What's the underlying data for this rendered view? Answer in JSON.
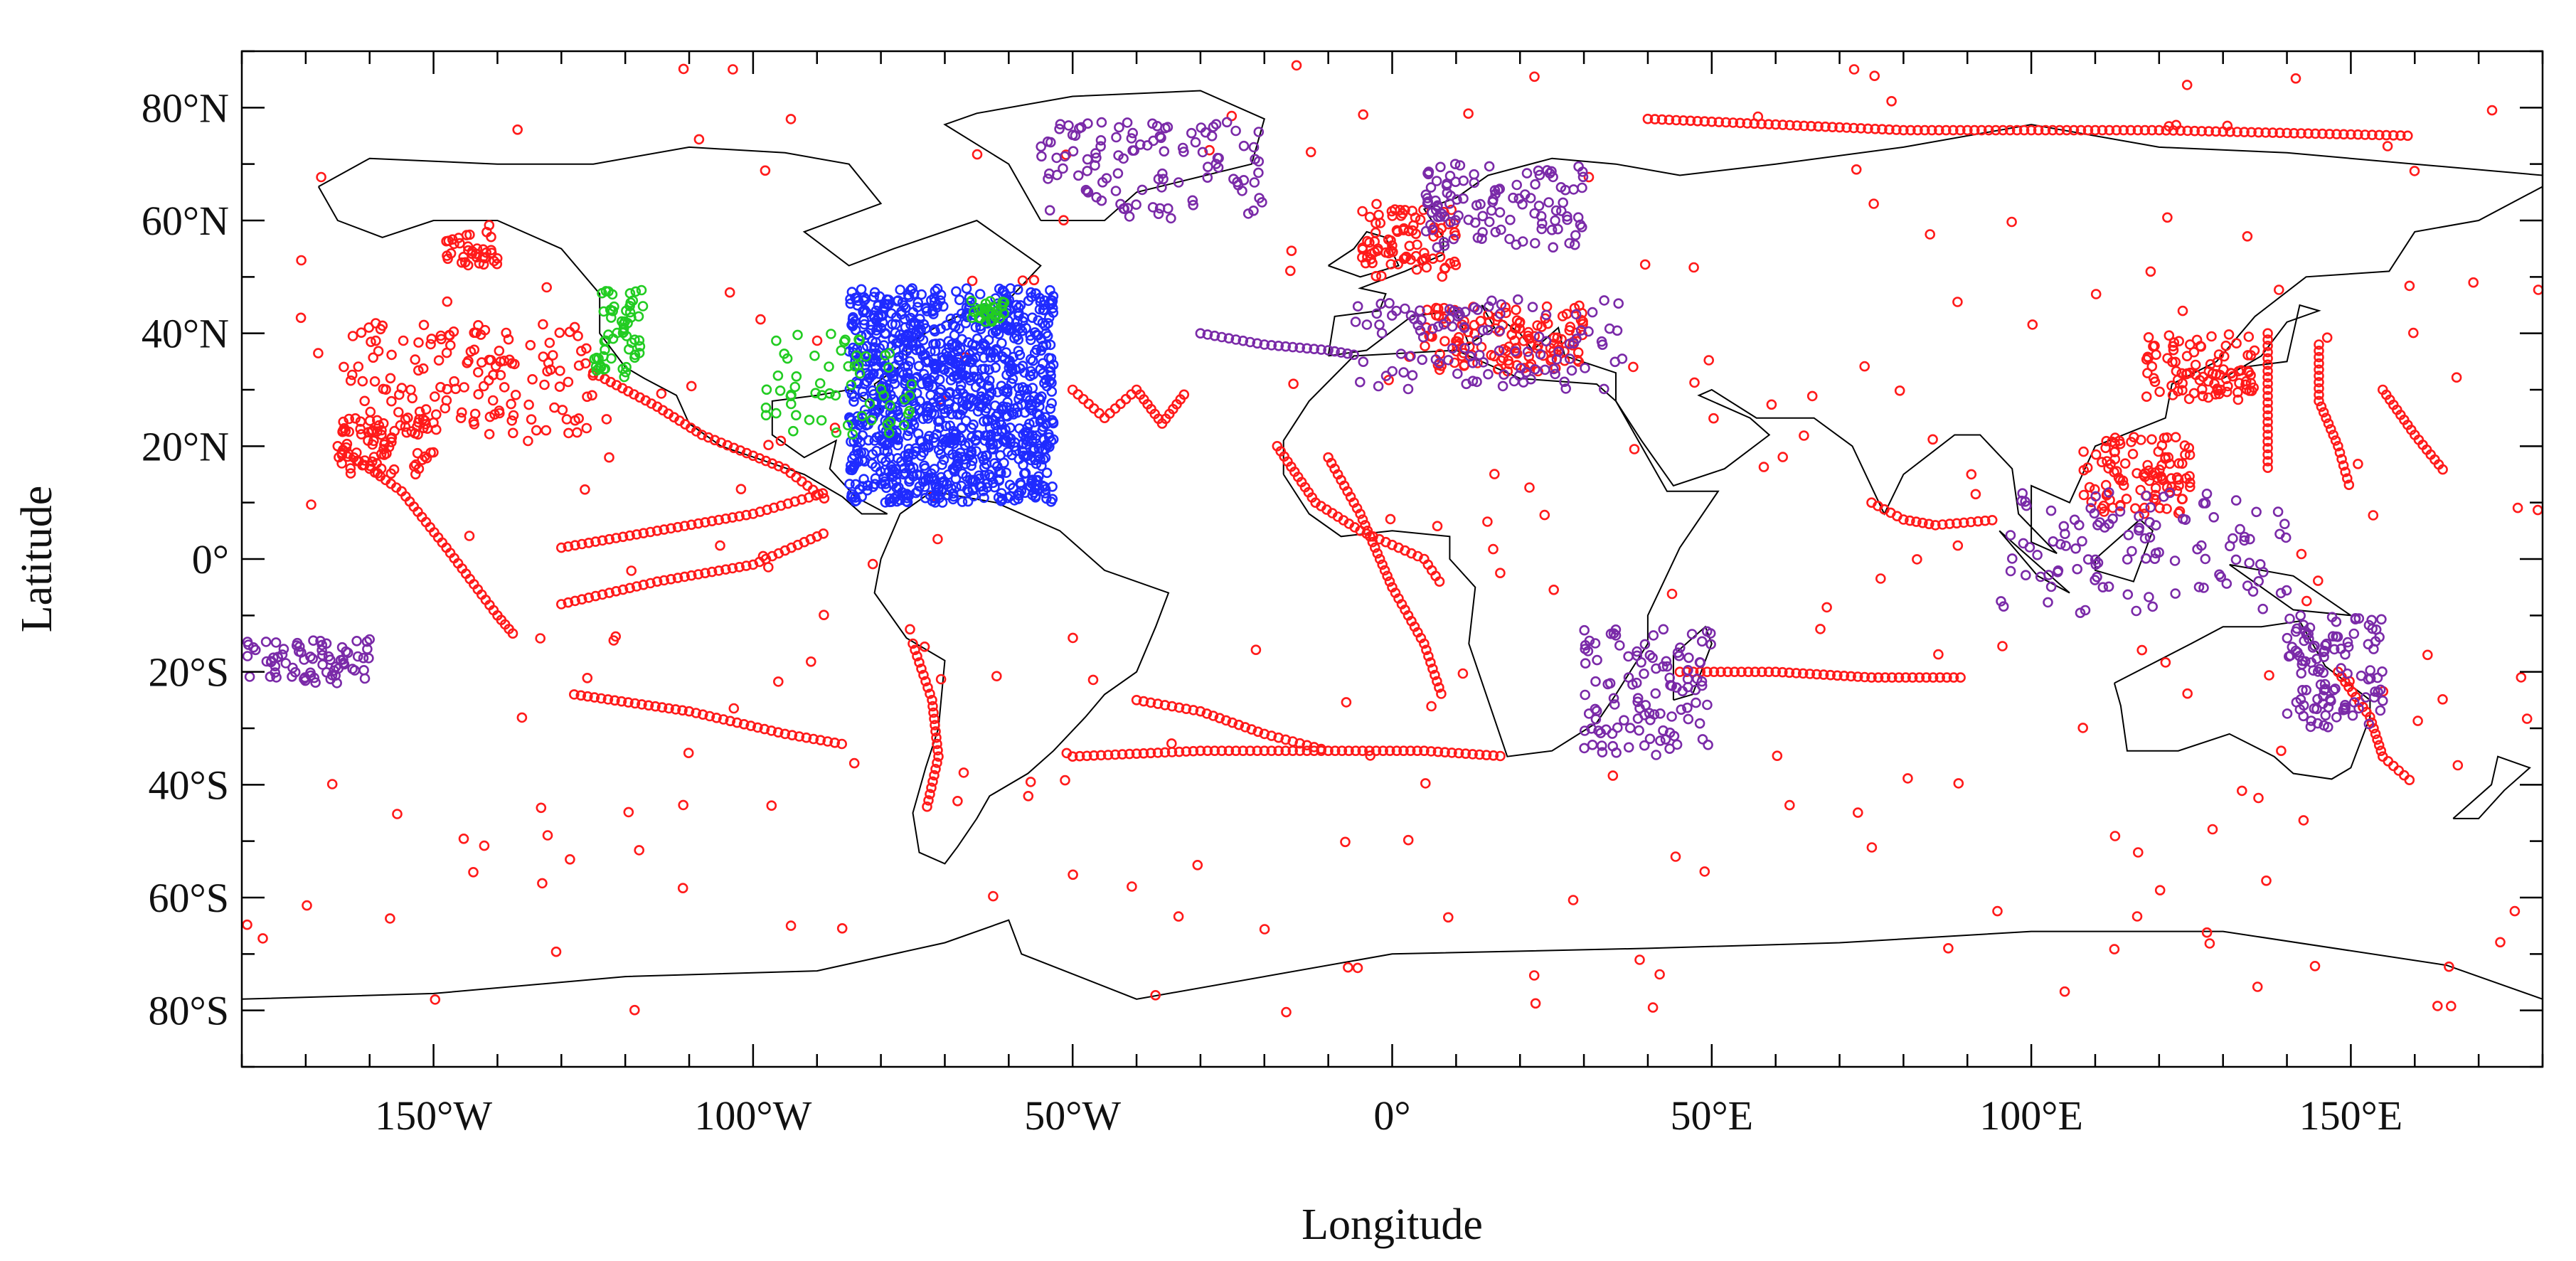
{
  "map": {
    "projection": "cylindrical equidistant (plate carrée)",
    "extent": {
      "lon": [
        -180,
        180
      ],
      "lat": [
        -90,
        90
      ]
    },
    "xlabel": "Longitude",
    "ylabel": "Latitude",
    "x_ticks": [
      {
        "lon": -150,
        "label": "150°W"
      },
      {
        "lon": -100,
        "label": "100°W"
      },
      {
        "lon": -50,
        "label": "50°W"
      },
      {
        "lon": 0,
        "label": "0°"
      },
      {
        "lon": 50,
        "label": "50°E"
      },
      {
        "lon": 100,
        "label": "100°E"
      },
      {
        "lon": 150,
        "label": "150°E"
      }
    ],
    "y_ticks": [
      {
        "lat": 80,
        "label": "80°N"
      },
      {
        "lat": 60,
        "label": "60°N"
      },
      {
        "lat": 40,
        "label": "40°N"
      },
      {
        "lat": 20,
        "label": "20°N"
      },
      {
        "lat": 0,
        "label": "0°"
      },
      {
        "lat": -20,
        "label": "20°S"
      },
      {
        "lat": -40,
        "label": "40°S"
      },
      {
        "lat": -60,
        "label": "60°S"
      },
      {
        "lat": -80,
        "label": "80°S"
      }
    ],
    "minor_tick_step_deg": 10,
    "basemap": "coastlines and country borders, thin black lines",
    "marker": "open circle",
    "colors": {
      "red": "#ff1a1a",
      "purple": "#7a2aa8",
      "blue": "#1f2bff",
      "green": "#22cc22",
      "line": "#000000"
    }
  },
  "chart_data": {
    "type": "scatter",
    "x_unit": "degrees longitude",
    "y_unit": "degrees latitude",
    "xlim": [
      -180,
      180
    ],
    "ylim": [
      -90,
      90
    ],
    "grid": false,
    "legend": "none",
    "series": [
      {
        "color": "red",
        "clusters": [
          {
            "region": "NE Pacific (dense)",
            "lon": [
              -165,
              -125
            ],
            "lat": [
              22,
              42
            ]
          },
          {
            "region": "Gulf of Alaska grid",
            "lon": [
              -148,
              -140
            ],
            "lat": [
              52,
              58
            ]
          },
          {
            "region": "Hawaii / central Pacific",
            "lon": [
              -165,
              -150
            ],
            "lat": [
              15,
              25
            ]
          },
          {
            "region": "Korea / Japan / E China",
            "lon": [
              118,
              135
            ],
            "lat": [
              28,
              40
            ]
          },
          {
            "region": "South China Sea / Philippines",
            "lon": [
              108,
              125
            ],
            "lat": [
              8,
              22
            ]
          },
          {
            "region": "North Sea / Norway",
            "lon": [
              -5,
              10
            ],
            "lat": [
              50,
              62
            ]
          },
          {
            "region": "Mediterranean / Aegean",
            "lon": [
              5,
              30
            ],
            "lat": [
              33,
              45
            ]
          }
        ],
        "tracks": [
          {
            "label": "Hawaii to equatorial Pacific",
            "points": [
              [
                -165,
                20
              ],
              [
                -155,
                12
              ],
              [
                -148,
                2
              ],
              [
                -140,
                -10
              ],
              [
                -137,
                -14
              ]
            ]
          },
          {
            "label": "Pacific equatorial transect",
            "points": [
              [
                -130,
                -8
              ],
              [
                -115,
                -4
              ],
              [
                -100,
                -1
              ],
              [
                -88,
                5
              ]
            ]
          },
          {
            "label": "Pacific 8N transect",
            "points": [
              [
                -130,
                2
              ],
              [
                -115,
                5
              ],
              [
                -100,
                8
              ],
              [
                -88,
                12
              ]
            ]
          },
          {
            "label": "South Pacific 30S",
            "points": [
              [
                -128,
                -24
              ],
              [
                -110,
                -27
              ],
              [
                -95,
                -31
              ],
              [
                -85,
                -33
              ]
            ]
          },
          {
            "label": "Mexico coast",
            "points": [
              [
                -125,
                33
              ],
              [
                -115,
                27
              ],
              [
                -108,
                22
              ],
              [
                -95,
                16
              ],
              [
                -88,
                10
              ]
            ]
          },
          {
            "label": "Mid-Atlantic ridge transect",
            "points": [
              [
                -10,
                18
              ],
              [
                -5,
                8
              ],
              [
                0,
                -5
              ],
              [
                5,
                -15
              ],
              [
                8,
                -25
              ]
            ]
          },
          {
            "label": "South Atlantic 35S",
            "points": [
              [
                -50,
                -35
              ],
              [
                -30,
                -34
              ],
              [
                -10,
                -34
              ],
              [
                5,
                -34
              ],
              [
                18,
                -35
              ]
            ]
          },
          {
            "label": "South Atlantic diagonal",
            "points": [
              [
                -40,
                -25
              ],
              [
                -30,
                -27
              ],
              [
                -20,
                -31
              ],
              [
                -10,
                -34
              ]
            ]
          },
          {
            "label": "W Africa coast",
            "points": [
              [
                -18,
                20
              ],
              [
                -12,
                10
              ],
              [
                -5,
                5
              ],
              [
                5,
                0
              ],
              [
                8,
                -5
              ]
            ]
          },
          {
            "label": "Atlantic zigzag",
            "points": [
              [
                -50,
                30
              ],
              [
                -45,
                25
              ],
              [
                -40,
                30
              ],
              [
                -36,
                24
              ],
              [
                -32,
                30
              ]
            ]
          },
          {
            "label": "Bay of Bengal / Sri Lanka",
            "points": [
              [
                75,
                10
              ],
              [
                80,
                7
              ],
              [
                85,
                6
              ],
              [
                95,
                7
              ]
            ]
          },
          {
            "label": "NW Pacific meridional",
            "points": [
              [
                137,
                40
              ],
              [
                137,
                30
              ],
              [
                137,
                22
              ],
              [
                137,
                15
              ]
            ]
          },
          {
            "label": "NW Pacific 2",
            "points": [
              [
                145,
                38
              ],
              [
                145,
                28
              ],
              [
                148,
                20
              ],
              [
                150,
                12
              ]
            ]
          },
          {
            "label": "NW Pacific 3",
            "points": [
              [
                155,
                30
              ],
              [
                160,
                22
              ],
              [
                165,
                15
              ]
            ]
          },
          {
            "label": "E Australia / Tasman",
            "points": [
              [
                148,
                -20
              ],
              [
                153,
                -28
              ],
              [
                155,
                -35
              ],
              [
                160,
                -40
              ]
            ]
          },
          {
            "label": "Indian Ocean 20S",
            "points": [
              [
                45,
                -20
              ],
              [
                60,
                -20
              ],
              [
                75,
                -21
              ],
              [
                90,
                -21
              ]
            ]
          },
          {
            "label": "Arctic margin",
            "points": [
              [
                40,
                78
              ],
              [
                80,
                76
              ],
              [
                120,
                76
              ],
              [
                160,
                75
              ]
            ]
          },
          {
            "label": "South America west coast",
            "points": [
              [
                -75,
                -15
              ],
              [
                -72,
                -25
              ],
              [
                -71,
                -35
              ],
              [
                -73,
                -45
              ]
            ]
          }
        ],
        "scattered": "sparse open circles across all oceans, Arctic and Southern Ocean margins"
      },
      {
        "color": "blue",
        "clusters": [
          {
            "region": "Western North Atlantic / Sargasso / Caribbean (very dense)",
            "lon": [
              -85,
              -53
            ],
            "lat": [
              10,
              48
            ]
          }
        ]
      },
      {
        "color": "purple",
        "clusters": [
          {
            "region": "Mediterranean (dense)",
            "lon": [
              -6,
              36
            ],
            "lat": [
              30,
              46
            ]
          },
          {
            "region": "Norwegian / Baltic coast",
            "lon": [
              5,
              30
            ],
            "lat": [
              55,
              70
            ]
          },
          {
            "region": "Greenland coast",
            "lon": [
              -55,
              -20
            ],
            "lat": [
              60,
              78
            ]
          },
          {
            "region": "Indonesia / Philippines",
            "lon": [
              95,
              140
            ],
            "lat": [
              -10,
              12
            ]
          },
          {
            "region": "NE Australia / Coral Sea",
            "lon": [
              140,
              155
            ],
            "lat": [
              -30,
              -10
            ]
          },
          {
            "region": "SW Pacific islands",
            "lon": [
              -180,
              -160
            ],
            "lat": [
              -22,
              -14
            ]
          },
          {
            "region": "Madagascar / Mozambique",
            "lon": [
              30,
              50
            ],
            "lat": [
              -35,
              -12
            ]
          }
        ],
        "tracks": [
          {
            "label": "NE Atlantic to Mediterranean",
            "points": [
              [
                -30,
                40
              ],
              [
                -20,
                38
              ],
              [
                -10,
                37
              ],
              [
                -5,
                36
              ]
            ]
          }
        ]
      },
      {
        "color": "green",
        "clusters": [
          {
            "region": "US Gulf coast / Florida / SE US",
            "lon": [
              -98,
              -75
            ],
            "lat": [
              22,
              40
            ]
          },
          {
            "region": "US West coast",
            "lon": [
              -125,
              -117
            ],
            "lat": [
              32,
              48
            ]
          },
          {
            "region": "Nova Scotia",
            "lon": [
              -66,
              -60
            ],
            "lat": [
              42,
              46
            ]
          }
        ]
      }
    ]
  }
}
